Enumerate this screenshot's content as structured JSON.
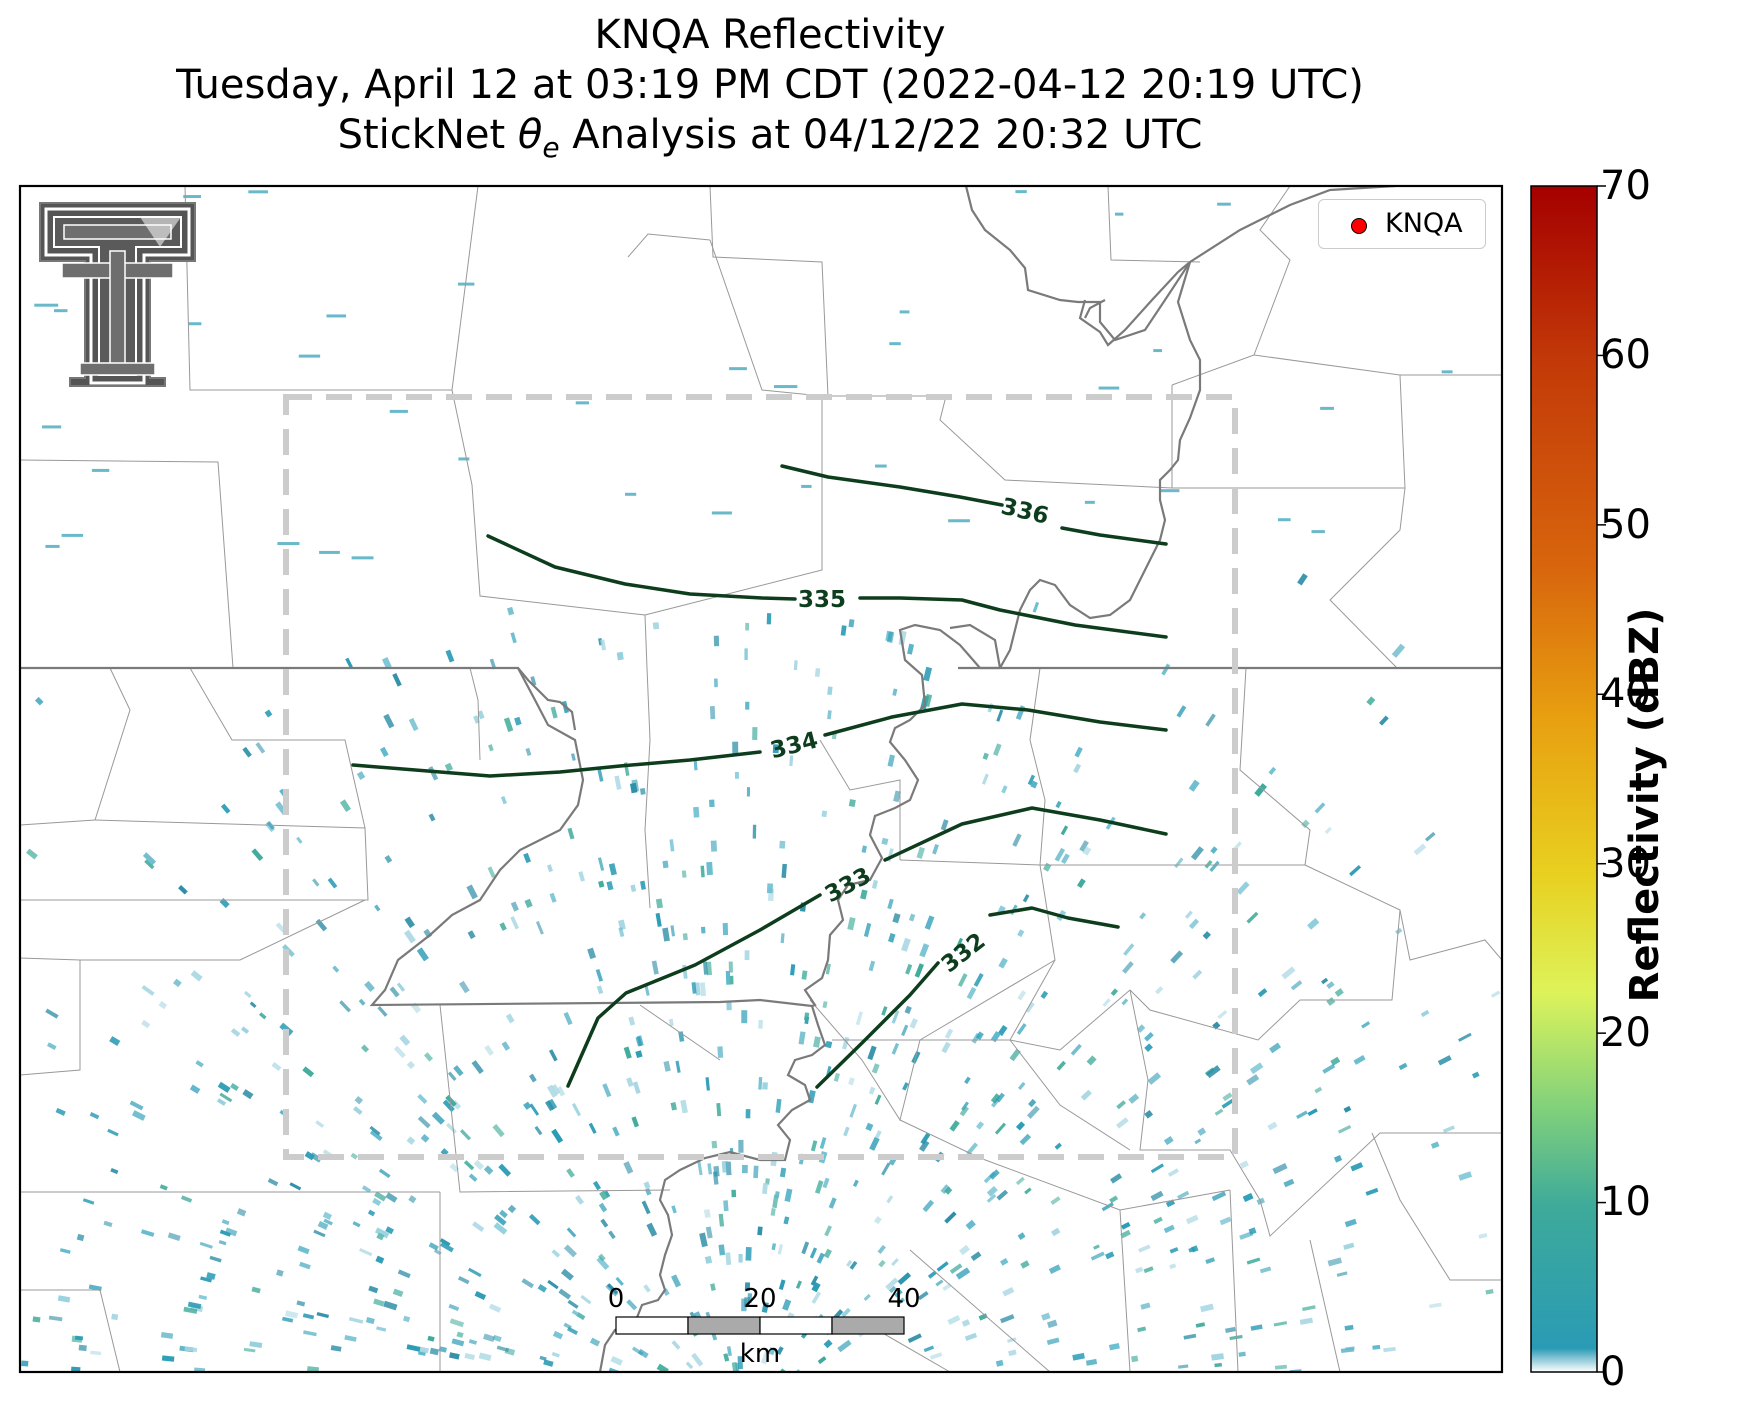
{
  "title": {
    "line1": "KNQA Reflectivity",
    "line2": "Tuesday, April 12 at 03:19 PM CDT (2022-04-12 20:19 UTC)",
    "line3": "StickNet θe Analysis at 04/12/22 20:32 UTC"
  },
  "logo": {
    "name": "texas-tech-double-t-logo"
  },
  "legend": {
    "label": "KNQA",
    "marker_color": "#ff0000"
  },
  "colorbar": {
    "label": "Reflectivity (dBZ)",
    "range": [
      0,
      70
    ],
    "ticks": [
      "70",
      "60",
      "50",
      "40",
      "30",
      "20",
      "10",
      "0"
    ],
    "colors": [
      "#ffffff",
      "#2a9bb5",
      "#3eaa9a",
      "#7fd07c",
      "#ddf35a",
      "#e8d020",
      "#e8a010",
      "#d8650d",
      "#c33a08",
      "#a50000"
    ]
  },
  "scale_bar": {
    "ticks": [
      "0",
      "20",
      "40"
    ],
    "unit": "km"
  },
  "contours": {
    "color": "#0d3d1d",
    "labels": [
      "336",
      "335",
      "334",
      "333",
      "332"
    ]
  },
  "analysis_box": {
    "style": "dashed",
    "color": "#cccccc"
  },
  "chart_data": {
    "type": "map",
    "field": "radar reflectivity",
    "units": "dBZ",
    "colorbar_range": [
      0,
      70
    ],
    "contour_field": "θe",
    "contour_values": [
      336,
      335,
      334,
      333,
      332
    ],
    "radar_site": "KNQA",
    "scale_km": [
      0,
      20,
      40
    ]
  }
}
